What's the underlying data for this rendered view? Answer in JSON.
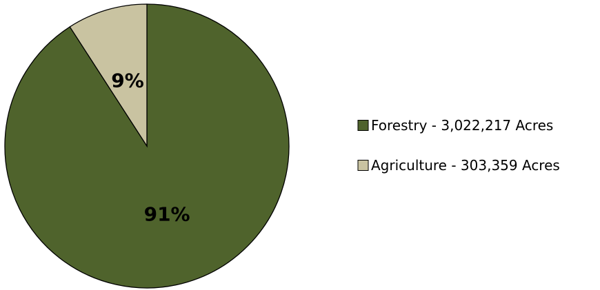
{
  "chart_data": {
    "type": "pie",
    "categories": [
      "Forestry - 3,022,217 Acres",
      "Agriculture - 303,359 Acres"
    ],
    "values": [
      3022217,
      303359
    ],
    "percent_labels": [
      "91%",
      "9%"
    ],
    "colors": [
      "#4f632c",
      "#c9c3a1"
    ],
    "start_angle_deg": 0,
    "direction": "clockwise",
    "legend_position": "right",
    "title": ""
  }
}
